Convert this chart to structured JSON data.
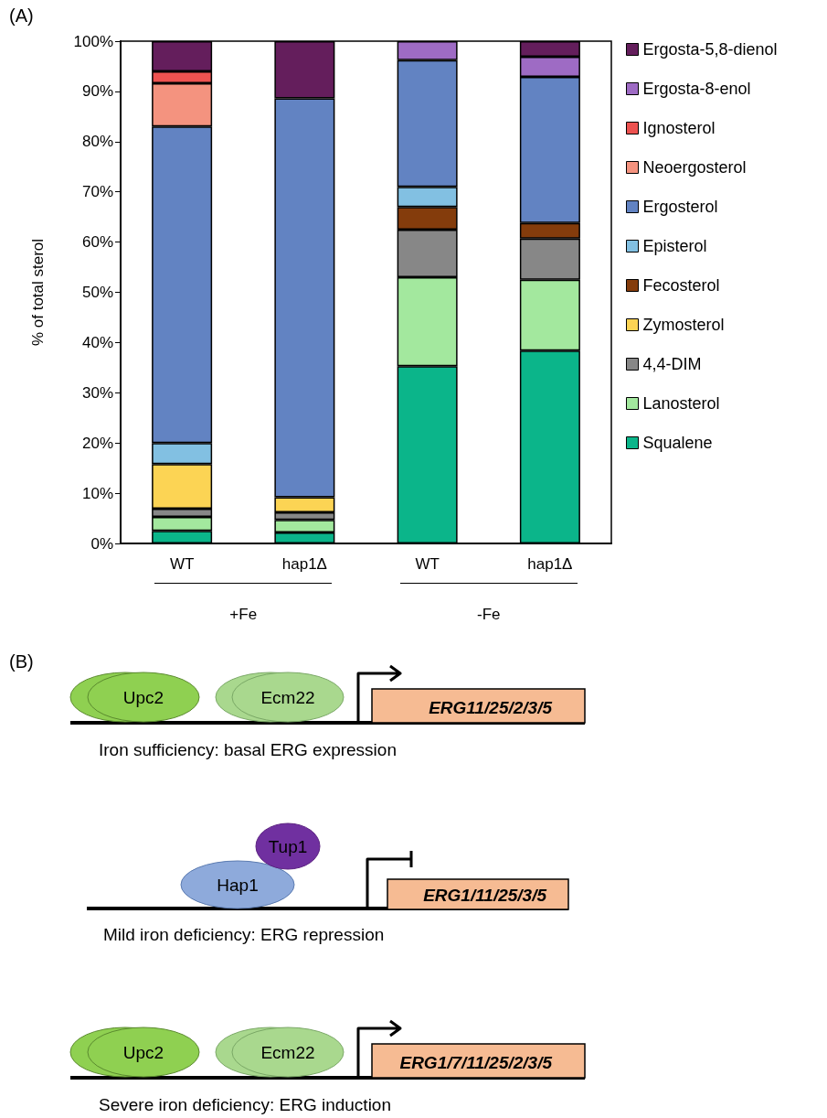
{
  "chart_data": [
    {
      "type": "bar",
      "stacked": true,
      "ylabel": "% of total sterol",
      "categories": [
        "WT",
        "hap1Δ",
        "WT",
        "hap1Δ"
      ],
      "ylim": [
        0,
        100
      ],
      "yticks": [
        {
          "value": 0,
          "label": "0%"
        },
        {
          "value": 10,
          "label": "10%"
        },
        {
          "value": 20,
          "label": "20%"
        },
        {
          "value": 30,
          "label": "30%"
        },
        {
          "value": 40,
          "label": "40%"
        },
        {
          "value": 50,
          "label": "50%"
        },
        {
          "value": 60,
          "label": "60%"
        },
        {
          "value": 70,
          "label": "70%"
        },
        {
          "value": 80,
          "label": "80%"
        },
        {
          "value": 90,
          "label": "90%"
        },
        {
          "value": 100,
          "label": "100%"
        }
      ],
      "grid": false,
      "legend": "right",
      "annotations": [
        "(A)",
        "+Fe",
        "-Fe"
      ],
      "series": [
        {
          "name": "Squalene",
          "color": "#0bb58a",
          "values": [
            2.5,
            2.2,
            35.3,
            38.4
          ]
        },
        {
          "name": "Lanosterol",
          "color": "#a3e89e",
          "values": [
            2.8,
            2.5,
            17.7,
            14.1
          ]
        },
        {
          "name": "4,4-DIM",
          "color": "#878787",
          "values": [
            1.6,
            1.5,
            9.5,
            8.2
          ]
        },
        {
          "name": "Zymosterol",
          "color": "#fcd454",
          "values": [
            8.9,
            3.0,
            null,
            null
          ]
        },
        {
          "name": "Fecosterol",
          "color": "#843c0c",
          "values": [
            null,
            null,
            4.5,
            3.1
          ]
        },
        {
          "name": "Episterol",
          "color": "#82c0e2",
          "values": [
            4.2,
            null,
            4.0,
            null
          ]
        },
        {
          "name": "Ergosterol",
          "color": "#6283c2",
          "values": [
            63.0,
            79.4,
            25.2,
            29.1
          ]
        },
        {
          "name": "Neoergosterol",
          "color": "#f4937f",
          "values": [
            8.6,
            null,
            null,
            null
          ]
        },
        {
          "name": "Ignosterol",
          "color": "#ed5250",
          "values": [
            2.4,
            null,
            null,
            null
          ]
        },
        {
          "name": "Ergosta-8-enol",
          "color": "#9e6bc4",
          "values": [
            null,
            null,
            3.8,
            4.0
          ]
        },
        {
          "name": "Ergosta-5,8-dienol",
          "color": "#641e5c",
          "values": [
            6.0,
            11.4,
            null,
            3.1
          ]
        }
      ]
    },
    {
      "type": "other",
      "annotations": [
        "(B)",
        "Upc2",
        "Ecm22",
        "ERG11/25/2/3/5",
        "Iron sufficiency: basal ERG expression",
        "Tup1",
        "Hap1",
        "ERG1/11/25/3/5",
        "Mild iron deficiency: ERG repression",
        "Upc2",
        "Ecm22",
        "ERG1/7/11/25/2/3/5",
        "Severe iron deficiency: ERG induction"
      ]
    }
  ]
}
